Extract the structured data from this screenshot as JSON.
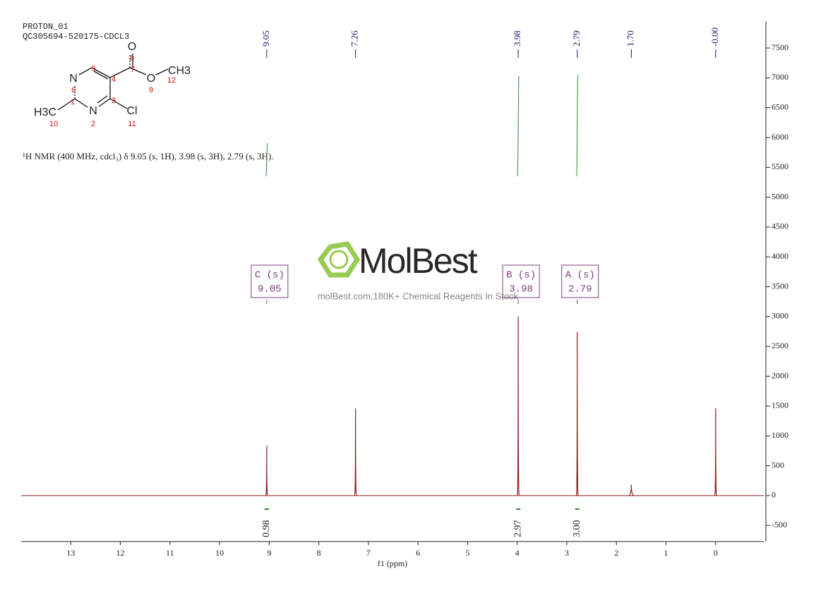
{
  "header": {
    "title": "PROTON_01",
    "sample": "QC305694-520175-CDCL3",
    "description": "¹H NMR (400 MHz, cdcl₃) δ 9.05 (s, 1H), 3.98 (s, 3H), 2.79 (s, 3H)."
  },
  "structure": {
    "atoms": [
      "N",
      "N",
      "O",
      "O",
      "CH3",
      "Cl",
      "H3C"
    ],
    "numbers": [
      "1",
      "2",
      "3",
      "4",
      "5",
      "6",
      "7",
      "8",
      "9",
      "10",
      "11",
      "12"
    ]
  },
  "watermark": {
    "brand": "MolBest",
    "tagline": "molBest.com,180K+ Chemical Reagents In Stock"
  },
  "chart_data": {
    "type": "nmr",
    "xlabel": "f1 (ppm)",
    "color": "#8b1a1a",
    "xlim": [
      14,
      -0.97
    ],
    "ylim": [
      -770,
      7950
    ],
    "xticks": [
      13,
      12,
      11,
      10,
      9,
      8,
      7,
      6,
      5,
      4,
      3,
      2,
      1,
      0
    ],
    "yticks": [
      -500,
      0,
      500,
      1000,
      1500,
      2000,
      2500,
      3000,
      3500,
      4000,
      4500,
      5000,
      5500,
      6000,
      6500,
      7000,
      7500
    ],
    "x": [
      9.05,
      7.26,
      3.98,
      2.79,
      1.7,
      0
    ],
    "values": [
      830,
      1460,
      3000,
      2740,
      180,
      1460
    ],
    "peak_labels": [
      9.05,
      7.26,
      3.98,
      2.79,
      {
        "value": 1.7,
        "label": "1.70"
      },
      {
        "value": 0,
        "label": "-0.00"
      }
    ],
    "integrals": {
      "color": "#2e8b2e",
      "x": [
        9.05,
        3.98,
        2.79
      ],
      "values": [
        0.98,
        2.97,
        {
          "value": 3.0,
          "label": "3.00"
        }
      ]
    },
    "multiplets": [
      {
        "label": "C (s)",
        "shift": 9.05
      },
      {
        "label": "B (s)",
        "shift": 3.98
      },
      {
        "label": "A (s)",
        "shift": 2.79
      }
    ]
  }
}
